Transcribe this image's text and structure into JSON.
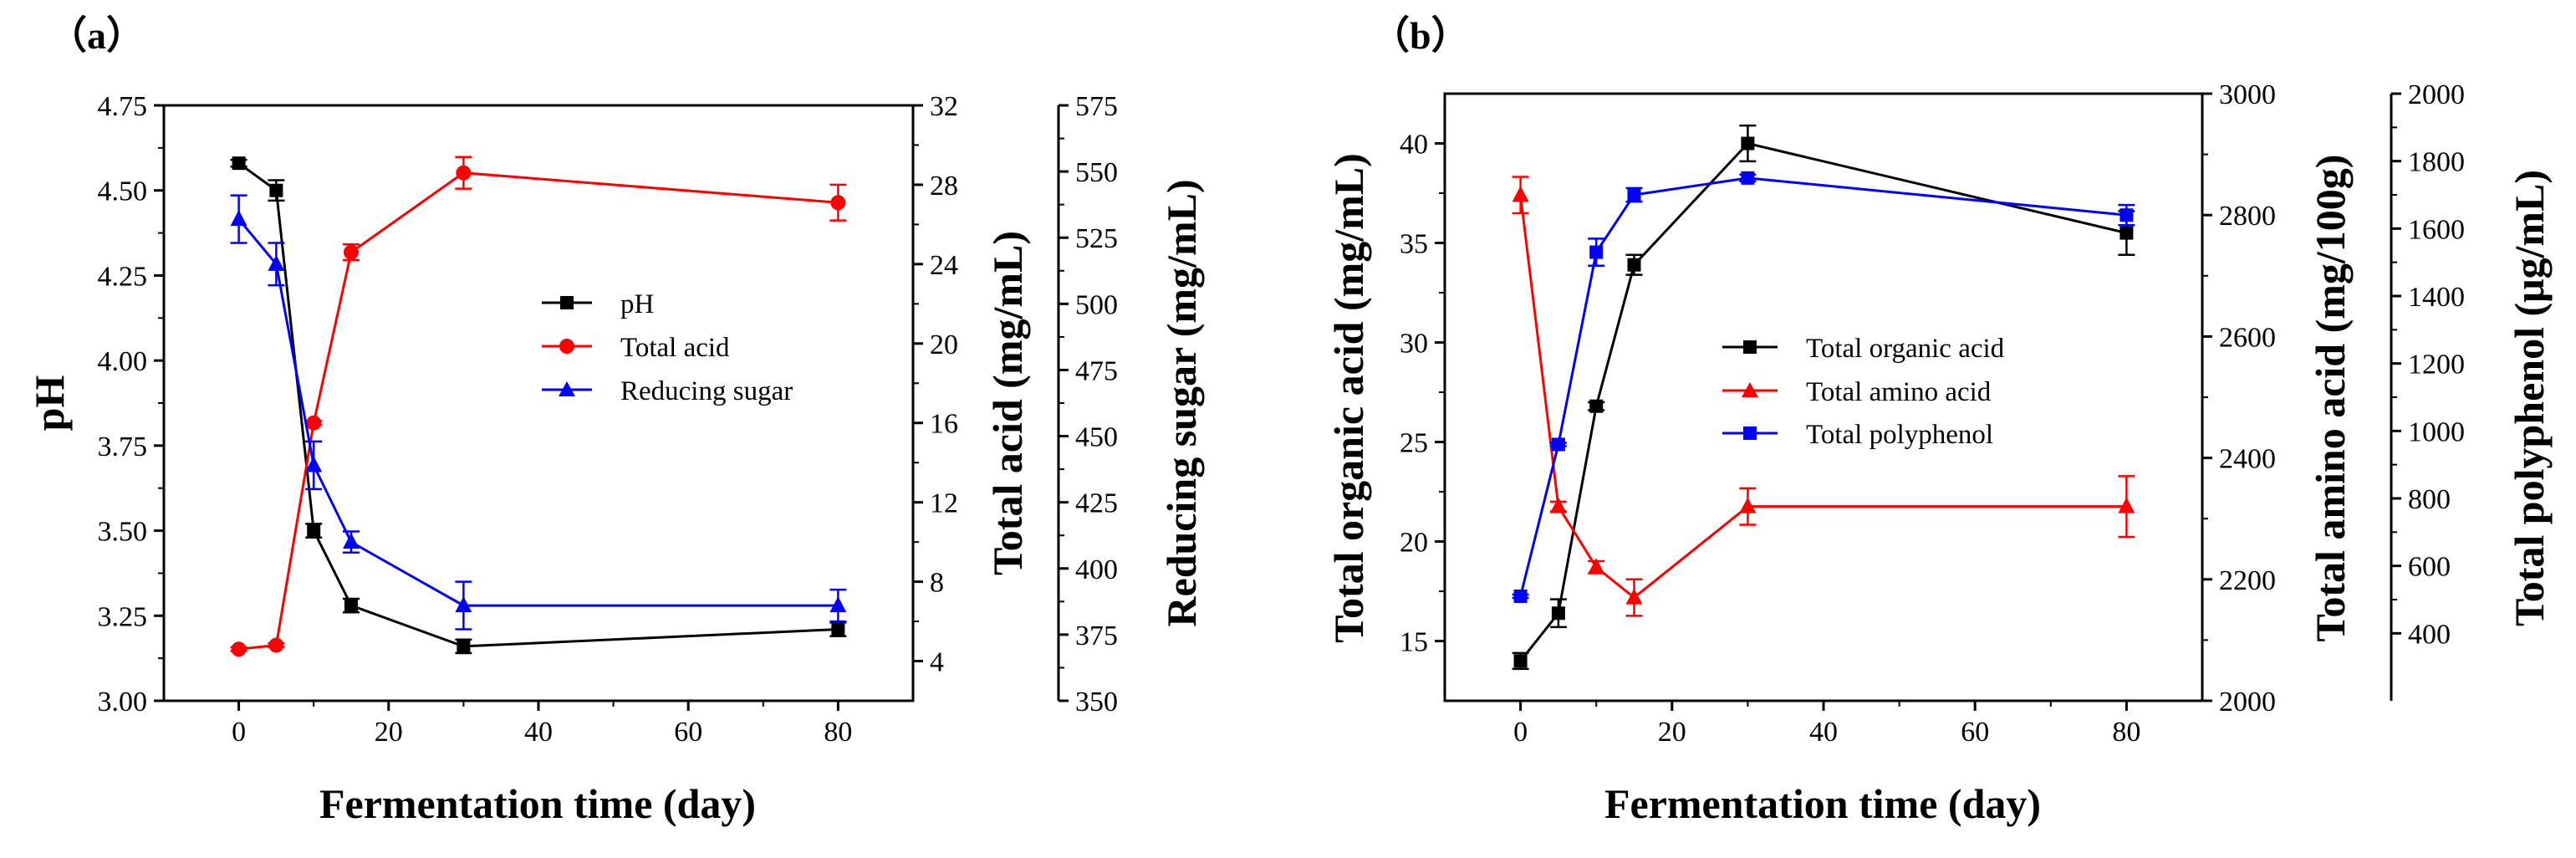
{
  "chart_data": [
    {
      "type": "line",
      "panel_label": "（a）",
      "xlabel": "Fermentation time (day)",
      "xlim": [
        -10,
        90
      ],
      "xticks": [
        0,
        20,
        40,
        60,
        80
      ],
      "x": [
        0,
        5,
        10,
        15,
        30,
        80
      ],
      "axes": [
        {
          "id": "pH",
          "label": "pH",
          "position": "left",
          "ylim": [
            3.0,
            4.75
          ],
          "ticks": [
            "3.00",
            "3.25",
            "3.50",
            "3.75",
            "4.00",
            "4.25",
            "4.50",
            "4.75"
          ]
        },
        {
          "id": "acid",
          "label": "Total acid (mg/mL)",
          "position": "right",
          "ylim": [
            2,
            32
          ],
          "ticks": [
            "4",
            "8",
            "12",
            "16",
            "20",
            "24",
            "28",
            "32"
          ]
        },
        {
          "id": "sugar",
          "label": "Reducing sugar (mg/mL)",
          "position": "right-offset",
          "ylim": [
            350,
            575
          ],
          "ticks": [
            "350",
            "375",
            "400",
            "425",
            "450",
            "475",
            "500",
            "525",
            "550",
            "575"
          ]
        }
      ],
      "series": [
        {
          "name": "pH",
          "axis": "pH",
          "color": "#000000",
          "marker": "square",
          "values": [
            4.58,
            4.5,
            3.5,
            3.28,
            3.16,
            3.21
          ],
          "errors": [
            0.01,
            0.03,
            0.02,
            0.02,
            0.02,
            0.02
          ]
        },
        {
          "name": "Total acid",
          "axis": "acid",
          "color": "#ff0000",
          "marker": "circle",
          "values": [
            4.6,
            4.8,
            16.0,
            24.6,
            28.6,
            27.1
          ],
          "errors": [
            0.1,
            0.1,
            0.1,
            0.4,
            0.8,
            0.9
          ]
        },
        {
          "name": "Reducing sugar",
          "axis": "sugar",
          "color": "#0000ff",
          "marker": "triangle",
          "values": [
            532,
            515,
            439,
            410,
            386,
            386
          ],
          "errors": [
            9,
            8,
            9,
            4,
            9,
            6
          ]
        }
      ],
      "legend": {
        "position": "center-right"
      }
    },
    {
      "type": "line",
      "panel_label": "（b）",
      "xlabel": "Fermentation time (day)",
      "xlim": [
        -10,
        90
      ],
      "xticks": [
        0,
        20,
        40,
        60,
        80
      ],
      "x": [
        0,
        5,
        10,
        15,
        30,
        80
      ],
      "axes": [
        {
          "id": "organic",
          "label": "Total organic acid (mg/mL)",
          "position": "left",
          "ylim": [
            12,
            42.5
          ],
          "ticks": [
            "15",
            "20",
            "25",
            "30",
            "35",
            "40"
          ]
        },
        {
          "id": "amino",
          "label": "Total amino acid (mg/100g)",
          "position": "right",
          "ylim": [
            2000,
            3000
          ],
          "ticks": [
            "2000",
            "2200",
            "2400",
            "2600",
            "2800",
            "3000"
          ]
        },
        {
          "id": "poly",
          "label": "Total polyphenol (μg/mL)",
          "position": "right-offset",
          "ylim": [
            200,
            2000
          ],
          "ticks": [
            "400",
            "600",
            "800",
            "1000",
            "1200",
            "1400",
            "1600",
            "1800",
            "2000"
          ]
        }
      ],
      "series": [
        {
          "name": "Total organic acid",
          "axis": "organic",
          "color": "#000000",
          "marker": "square",
          "values": [
            14.0,
            16.4,
            26.8,
            33.9,
            40.0,
            35.5
          ],
          "errors": [
            0.4,
            0.7,
            0.2,
            0.5,
            0.9,
            1.1
          ]
        },
        {
          "name": "Total amino acid",
          "axis": "amino",
          "color": "#ff0000",
          "marker": "triangle",
          "values": [
            2833,
            2320,
            2220,
            2170,
            2320,
            2320
          ],
          "errors": [
            30,
            8,
            10,
            30,
            30,
            50
          ]
        },
        {
          "name": "Total polyphenol",
          "axis": "poly",
          "color": "#0000ff",
          "marker": "square",
          "values": [
            510,
            960,
            1530,
            1700,
            1750,
            1640
          ],
          "errors": [
            5,
            5,
            40,
            20,
            10,
            30
          ]
        }
      ],
      "legend": {
        "position": "center"
      }
    }
  ]
}
